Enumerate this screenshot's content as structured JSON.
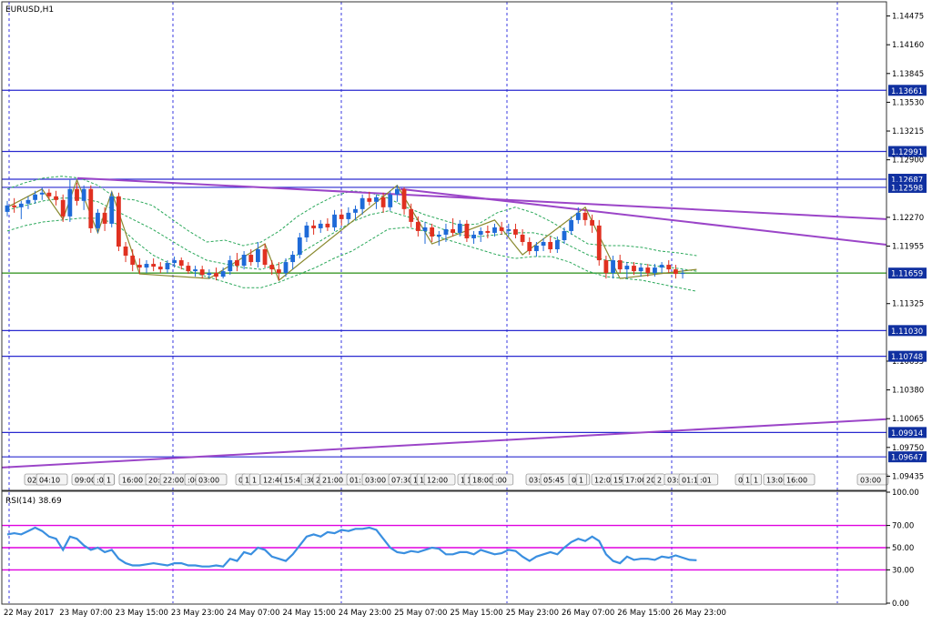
{
  "chart_data": [
    {
      "type": "candlestick",
      "title": "EURUSD,H1",
      "symbol": "EURUSD",
      "timeframe": "H1",
      "ylim": [
        1.0928,
        1.1463
      ],
      "y_ticks": [
        "1.14475",
        "1.14160",
        "1.13845",
        "1.13530",
        "1.13215",
        "1.12900",
        "1.12270",
        "1.11955",
        "1.11325",
        "1.10695",
        "1.10380",
        "1.10065",
        "1.09750",
        "1.09435"
      ],
      "grid": "vertical dashed",
      "colors": {
        "up_candle": "#1e6ad8",
        "down_candle": "#e03020",
        "horizontal_lines": "#2a2ad0",
        "support_line": "#5aa84a",
        "trend_lines": "#9b45c8",
        "bollinger_bands": "#2aa85a",
        "zigzag": "#8a8a30",
        "grid": "#3a3ae0",
        "level_label_bg": "#1030a0"
      },
      "price_levels": [
        {
          "price": 1.13661,
          "label": "1.13661"
        },
        {
          "price": 1.12991,
          "label": "1.12991"
        },
        {
          "price": 1.12687,
          "label": "1.12687"
        },
        {
          "price": 1.12598,
          "label": "1.12598"
        },
        {
          "price": 1.11659,
          "label": "1.11659",
          "kind": "support"
        },
        {
          "price": 1.1103,
          "label": "1.11030"
        },
        {
          "price": 1.10748,
          "label": "1.10748"
        },
        {
          "price": 1.09914,
          "label": "1.09914"
        },
        {
          "price": 1.09647,
          "label": "1.09647"
        }
      ],
      "trendlines": [
        {
          "from": [
            "23 May 07:00",
            1.127
          ],
          "to": [
            "26 May 23:00",
            1.1225
          ]
        },
        {
          "from": [
            "24 May 23:00",
            1.1258
          ],
          "to": [
            "26 May 23:00",
            1.1197
          ]
        },
        {
          "from": [
            "22 May 2017",
            1.0953
          ],
          "to": [
            "26 May 23:00",
            1.1006
          ]
        }
      ],
      "time_marker_labels": [
        "02:",
        "04:10",
        "09:00",
        ":00",
        "1",
        "16:00",
        "20:",
        "22:00",
        ":00",
        "03:00",
        "0",
        "1",
        "1",
        "12:40",
        "15:45",
        ":30",
        "2",
        "21:00",
        "01:",
        "03:00",
        "07:30",
        "1",
        "1",
        "12:00",
        "1",
        "1",
        "18:00",
        ":00",
        "03:",
        "05:45",
        "09:",
        "1",
        "12:00",
        "15:",
        "17:00",
        "20:",
        "2",
        "03:",
        "01:15",
        ":01",
        "0",
        "1",
        "1",
        "13:00",
        "16:00",
        "03:00"
      ],
      "candles": [
        {
          "o": 1.1233,
          "h": 1.1245,
          "l": 1.1228,
          "c": 1.124
        },
        {
          "o": 1.124,
          "h": 1.1248,
          "l": 1.1232,
          "c": 1.1238
        },
        {
          "o": 1.1238,
          "h": 1.1245,
          "l": 1.1225,
          "c": 1.1242
        },
        {
          "o": 1.1242,
          "h": 1.125,
          "l": 1.1236,
          "c": 1.1246
        },
        {
          "o": 1.1246,
          "h": 1.1256,
          "l": 1.1242,
          "c": 1.1252
        },
        {
          "o": 1.1252,
          "h": 1.126,
          "l": 1.1246,
          "c": 1.1254
        },
        {
          "o": 1.1254,
          "h": 1.1258,
          "l": 1.1247,
          "c": 1.125
        },
        {
          "o": 1.125,
          "h": 1.1256,
          "l": 1.124,
          "c": 1.1246
        },
        {
          "o": 1.1246,
          "h": 1.1252,
          "l": 1.1222,
          "c": 1.1228
        },
        {
          "o": 1.1228,
          "h": 1.1268,
          "l": 1.1222,
          "c": 1.1258
        },
        {
          "o": 1.1258,
          "h": 1.1265,
          "l": 1.124,
          "c": 1.1245
        },
        {
          "o": 1.1245,
          "h": 1.1262,
          "l": 1.1235,
          "c": 1.1258
        },
        {
          "o": 1.1258,
          "h": 1.1262,
          "l": 1.121,
          "c": 1.1215
        },
        {
          "o": 1.1215,
          "h": 1.1236,
          "l": 1.121,
          "c": 1.1232
        },
        {
          "o": 1.1232,
          "h": 1.1238,
          "l": 1.1212,
          "c": 1.122
        },
        {
          "o": 1.122,
          "h": 1.1255,
          "l": 1.1216,
          "c": 1.125
        },
        {
          "o": 1.125,
          "h": 1.1254,
          "l": 1.119,
          "c": 1.1195
        },
        {
          "o": 1.1195,
          "h": 1.12,
          "l": 1.1178,
          "c": 1.1185
        },
        {
          "o": 1.1185,
          "h": 1.1192,
          "l": 1.1168,
          "c": 1.1175
        },
        {
          "o": 1.1175,
          "h": 1.1182,
          "l": 1.1165,
          "c": 1.1172
        },
        {
          "o": 1.1172,
          "h": 1.118,
          "l": 1.1166,
          "c": 1.1176
        },
        {
          "o": 1.1176,
          "h": 1.1182,
          "l": 1.1168,
          "c": 1.1173
        },
        {
          "o": 1.1173,
          "h": 1.1178,
          "l": 1.1166,
          "c": 1.117
        },
        {
          "o": 1.117,
          "h": 1.118,
          "l": 1.1166,
          "c": 1.1177
        },
        {
          "o": 1.1177,
          "h": 1.1184,
          "l": 1.1172,
          "c": 1.118
        },
        {
          "o": 1.118,
          "h": 1.1183,
          "l": 1.117,
          "c": 1.1174
        },
        {
          "o": 1.1174,
          "h": 1.1178,
          "l": 1.1165,
          "c": 1.1168
        },
        {
          "o": 1.1168,
          "h": 1.1174,
          "l": 1.1162,
          "c": 1.117
        },
        {
          "o": 1.117,
          "h": 1.1174,
          "l": 1.116,
          "c": 1.1164
        },
        {
          "o": 1.1164,
          "h": 1.117,
          "l": 1.116,
          "c": 1.1166
        },
        {
          "o": 1.1166,
          "h": 1.1172,
          "l": 1.1158,
          "c": 1.1162
        },
        {
          "o": 1.1162,
          "h": 1.1172,
          "l": 1.116,
          "c": 1.1168
        },
        {
          "o": 1.1168,
          "h": 1.1185,
          "l": 1.1164,
          "c": 1.118
        },
        {
          "o": 1.118,
          "h": 1.1188,
          "l": 1.1168,
          "c": 1.1174
        },
        {
          "o": 1.1174,
          "h": 1.119,
          "l": 1.117,
          "c": 1.1186
        },
        {
          "o": 1.1186,
          "h": 1.1192,
          "l": 1.1174,
          "c": 1.1178
        },
        {
          "o": 1.1178,
          "h": 1.12,
          "l": 1.1172,
          "c": 1.1192
        },
        {
          "o": 1.1192,
          "h": 1.1198,
          "l": 1.1172,
          "c": 1.1175
        },
        {
          "o": 1.1175,
          "h": 1.118,
          "l": 1.1164,
          "c": 1.117
        },
        {
          "o": 1.117,
          "h": 1.1178,
          "l": 1.1158,
          "c": 1.1166
        },
        {
          "o": 1.1166,
          "h": 1.1182,
          "l": 1.1162,
          "c": 1.1178
        },
        {
          "o": 1.1178,
          "h": 1.119,
          "l": 1.117,
          "c": 1.1186
        },
        {
          "o": 1.1186,
          "h": 1.121,
          "l": 1.1182,
          "c": 1.1205
        },
        {
          "o": 1.1205,
          "h": 1.1222,
          "l": 1.12,
          "c": 1.1218
        },
        {
          "o": 1.1218,
          "h": 1.1224,
          "l": 1.1208,
          "c": 1.1215
        },
        {
          "o": 1.1215,
          "h": 1.1224,
          "l": 1.121,
          "c": 1.122
        },
        {
          "o": 1.122,
          "h": 1.1226,
          "l": 1.1212,
          "c": 1.1216
        },
        {
          "o": 1.1216,
          "h": 1.1235,
          "l": 1.1212,
          "c": 1.123
        },
        {
          "o": 1.123,
          "h": 1.1236,
          "l": 1.1218,
          "c": 1.1225
        },
        {
          "o": 1.1225,
          "h": 1.1238,
          "l": 1.122,
          "c": 1.1232
        },
        {
          "o": 1.1232,
          "h": 1.124,
          "l": 1.1224,
          "c": 1.1236
        },
        {
          "o": 1.1236,
          "h": 1.1252,
          "l": 1.123,
          "c": 1.1248
        },
        {
          "o": 1.1248,
          "h": 1.1255,
          "l": 1.124,
          "c": 1.1244
        },
        {
          "o": 1.1244,
          "h": 1.1252,
          "l": 1.1236,
          "c": 1.1249
        },
        {
          "o": 1.1249,
          "h": 1.1254,
          "l": 1.1232,
          "c": 1.1238
        },
        {
          "o": 1.1238,
          "h": 1.1256,
          "l": 1.1234,
          "c": 1.1252
        },
        {
          "o": 1.1252,
          "h": 1.1262,
          "l": 1.1244,
          "c": 1.1258
        },
        {
          "o": 1.1258,
          "h": 1.126,
          "l": 1.123,
          "c": 1.1236
        },
        {
          "o": 1.1236,
          "h": 1.1242,
          "l": 1.1216,
          "c": 1.1222
        },
        {
          "o": 1.1222,
          "h": 1.1228,
          "l": 1.1206,
          "c": 1.1212
        },
        {
          "o": 1.1212,
          "h": 1.1222,
          "l": 1.1198,
          "c": 1.1216
        },
        {
          "o": 1.1216,
          "h": 1.122,
          "l": 1.12,
          "c": 1.1206
        },
        {
          "o": 1.1206,
          "h": 1.1212,
          "l": 1.1196,
          "c": 1.1208
        },
        {
          "o": 1.1208,
          "h": 1.122,
          "l": 1.12,
          "c": 1.1214
        },
        {
          "o": 1.1214,
          "h": 1.1226,
          "l": 1.1206,
          "c": 1.121
        },
        {
          "o": 1.121,
          "h": 1.1224,
          "l": 1.1206,
          "c": 1.122
        },
        {
          "o": 1.122,
          "h": 1.1224,
          "l": 1.12,
          "c": 1.1204
        },
        {
          "o": 1.1204,
          "h": 1.1212,
          "l": 1.1198,
          "c": 1.1208
        },
        {
          "o": 1.1208,
          "h": 1.1216,
          "l": 1.12,
          "c": 1.1212
        },
        {
          "o": 1.1212,
          "h": 1.1218,
          "l": 1.1204,
          "c": 1.121
        },
        {
          "o": 1.121,
          "h": 1.122,
          "l": 1.1206,
          "c": 1.1216
        },
        {
          "o": 1.1216,
          "h": 1.1222,
          "l": 1.1208,
          "c": 1.1212
        },
        {
          "o": 1.1212,
          "h": 1.122,
          "l": 1.1206,
          "c": 1.1214
        },
        {
          "o": 1.1214,
          "h": 1.122,
          "l": 1.1204,
          "c": 1.1208
        },
        {
          "o": 1.1208,
          "h": 1.1214,
          "l": 1.1196,
          "c": 1.12
        },
        {
          "o": 1.12,
          "h": 1.1205,
          "l": 1.1186,
          "c": 1.119
        },
        {
          "o": 1.119,
          "h": 1.12,
          "l": 1.1184,
          "c": 1.1196
        },
        {
          "o": 1.1196,
          "h": 1.1204,
          "l": 1.119,
          "c": 1.12
        },
        {
          "o": 1.12,
          "h": 1.1206,
          "l": 1.1188,
          "c": 1.1192
        },
        {
          "o": 1.1192,
          "h": 1.1206,
          "l": 1.1188,
          "c": 1.1202
        },
        {
          "o": 1.1202,
          "h": 1.1216,
          "l": 1.1198,
          "c": 1.1212
        },
        {
          "o": 1.1212,
          "h": 1.1228,
          "l": 1.1208,
          "c": 1.1224
        },
        {
          "o": 1.1224,
          "h": 1.1238,
          "l": 1.122,
          "c": 1.1232
        },
        {
          "o": 1.1232,
          "h": 1.1236,
          "l": 1.1218,
          "c": 1.1224
        },
        {
          "o": 1.1224,
          "h": 1.123,
          "l": 1.121,
          "c": 1.1218
        },
        {
          "o": 1.1218,
          "h": 1.1224,
          "l": 1.1174,
          "c": 1.118
        },
        {
          "o": 1.118,
          "h": 1.1185,
          "l": 1.116,
          "c": 1.1166
        },
        {
          "o": 1.1166,
          "h": 1.1185,
          "l": 1.116,
          "c": 1.118
        },
        {
          "o": 1.118,
          "h": 1.1186,
          "l": 1.1166,
          "c": 1.117
        },
        {
          "o": 1.117,
          "h": 1.1178,
          "l": 1.116,
          "c": 1.1174
        },
        {
          "o": 1.1174,
          "h": 1.1178,
          "l": 1.1164,
          "c": 1.1168
        },
        {
          "o": 1.1168,
          "h": 1.1176,
          "l": 1.1162,
          "c": 1.1172
        },
        {
          "o": 1.1172,
          "h": 1.1176,
          "l": 1.1162,
          "c": 1.1166
        },
        {
          "o": 1.1166,
          "h": 1.1176,
          "l": 1.1162,
          "c": 1.1172
        },
        {
          "o": 1.1172,
          "h": 1.1178,
          "l": 1.1166,
          "c": 1.1175
        },
        {
          "o": 1.1175,
          "h": 1.118,
          "l": 1.1166,
          "c": 1.117
        },
        {
          "o": 1.117,
          "h": 1.1175,
          "l": 1.116,
          "c": 1.1165
        },
        {
          "o": 1.1165,
          "h": 1.117,
          "l": 1.116,
          "c": 1.1166
        }
      ],
      "bollinger": {
        "upper": [
          1.1258,
          1.1265,
          1.127,
          1.1272,
          1.127,
          1.1262,
          1.1248,
          1.1246,
          1.124,
          1.1226,
          1.1212,
          1.12,
          1.1202,
          1.1196,
          1.12,
          1.1212,
          1.1228,
          1.124,
          1.125,
          1.1256,
          1.1254,
          1.1248,
          1.1238,
          1.123,
          1.1224,
          1.1218,
          1.122,
          1.1232,
          1.1238,
          1.1232,
          1.1222,
          1.121,
          1.1198,
          1.1196,
          1.1196,
          1.1194,
          1.119,
          1.1188,
          1.1185
        ],
        "middle": [
          1.1235,
          1.124,
          1.1245,
          1.1248,
          1.1248,
          1.1244,
          1.1234,
          1.1224,
          1.1214,
          1.1202,
          1.119,
          1.118,
          1.1176,
          1.1172,
          1.117,
          1.1176,
          1.1186,
          1.1198,
          1.121,
          1.1222,
          1.123,
          1.1234,
          1.1228,
          1.1222,
          1.1214,
          1.1208,
          1.1206,
          1.1208,
          1.121,
          1.121,
          1.1206,
          1.1196,
          1.1186,
          1.118,
          1.1178,
          1.1176,
          1.1173,
          1.1171,
          1.1168
        ],
        "lower": [
          1.1212,
          1.1218,
          1.1222,
          1.1224,
          1.1226,
          1.1226,
          1.122,
          1.1202,
          1.1186,
          1.1176,
          1.1168,
          1.1162,
          1.1156,
          1.115,
          1.115,
          1.1156,
          1.1164,
          1.1172,
          1.1182,
          1.119,
          1.1202,
          1.1214,
          1.1216,
          1.1212,
          1.1204,
          1.1198,
          1.1192,
          1.1186,
          1.1182,
          1.1184,
          1.1184,
          1.1178,
          1.1168,
          1.1162,
          1.116,
          1.1158,
          1.1154,
          1.115,
          1.1146
        ]
      },
      "zigzag": [
        [
          0,
          1.1238
        ],
        [
          5,
          1.1258
        ],
        [
          8,
          1.1225
        ],
        [
          10,
          1.1268
        ],
        [
          13,
          1.121
        ],
        [
          15,
          1.1255
        ],
        [
          19,
          1.1165
        ],
        [
          29,
          1.116
        ],
        [
          37,
          1.1198
        ],
        [
          39,
          1.1158
        ],
        [
          56,
          1.1262
        ],
        [
          61,
          1.1198
        ],
        [
          70,
          1.1224
        ],
        [
          74,
          1.1186
        ],
        [
          83,
          1.1238
        ],
        [
          88,
          1.116
        ],
        [
          99,
          1.117
        ]
      ]
    },
    {
      "type": "line",
      "title": "RSI(14) 38.69",
      "indicator": "RSI",
      "period": 14,
      "current": 38.69,
      "ylim": [
        0,
        100
      ],
      "y_ticks": [
        "100.00",
        "70.00",
        "50.00",
        "30.00",
        "0.00"
      ],
      "levels": [
        70,
        50,
        30
      ],
      "colors": {
        "line": "#3a8fe0",
        "levels": "#e000e0"
      },
      "values": [
        62,
        63,
        62,
        65,
        68,
        65,
        60,
        58,
        48,
        60,
        58,
        52,
        48,
        50,
        46,
        48,
        40,
        36,
        34,
        34,
        35,
        36,
        35,
        34,
        36,
        36,
        34,
        34,
        33,
        33,
        34,
        33,
        40,
        38,
        46,
        44,
        50,
        48,
        42,
        40,
        38,
        44,
        52,
        60,
        62,
        60,
        64,
        63,
        66,
        65,
        67,
        67,
        68,
        66,
        58,
        50,
        46,
        45,
        47,
        46,
        48,
        50,
        49,
        44,
        44,
        46,
        46,
        44,
        48,
        46,
        44,
        45,
        48,
        47,
        42,
        38,
        42,
        44,
        46,
        44,
        50,
        55,
        58,
        56,
        60,
        56,
        44,
        38,
        36,
        42,
        39,
        40,
        40,
        39,
        42,
        41,
        43,
        41,
        39,
        38.69
      ]
    }
  ],
  "time_axis": [
    "22 May 2017",
    "23 May 07:00",
    "23 May 15:00",
    "23 May 23:00",
    "24 May 07:00",
    "24 May 15:00",
    "24 May 23:00",
    "25 May 07:00",
    "25 May 15:00",
    "25 May 23:00",
    "26 May 07:00",
    "26 May 15:00",
    "26 May 23:00"
  ]
}
